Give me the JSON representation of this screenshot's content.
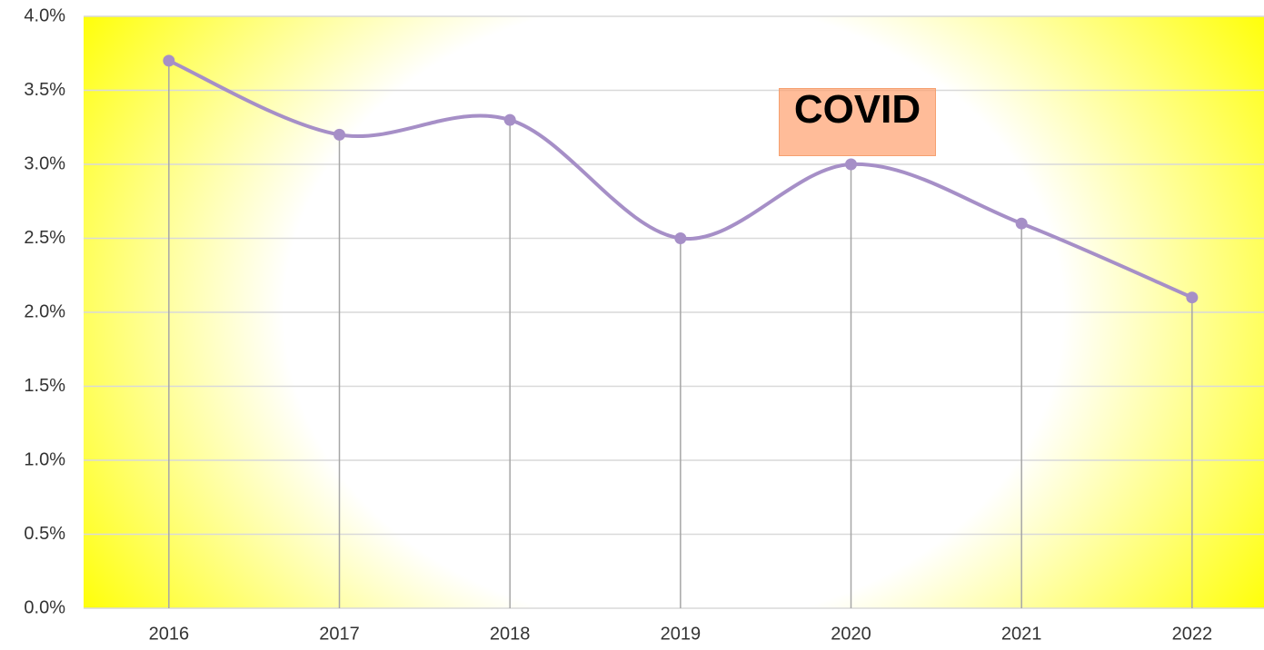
{
  "chart_data": {
    "type": "line",
    "categories": [
      "2016",
      "2017",
      "2018",
      "2019",
      "2020",
      "2021",
      "2022"
    ],
    "values": [
      3.7,
      3.2,
      3.3,
      2.5,
      3.0,
      2.6,
      2.1
    ],
    "color": "#a68fc7",
    "ylim": [
      0,
      4
    ],
    "yticks": [
      {
        "value": 0,
        "label": "0.0%"
      },
      {
        "value": 0.5,
        "label": "0.5%"
      },
      {
        "value": 1,
        "label": "1.0%"
      },
      {
        "value": 1.5,
        "label": "1.5%"
      },
      {
        "value": 2,
        "label": "2.0%"
      },
      {
        "value": 2.5,
        "label": "2.5%"
      },
      {
        "value": 3,
        "label": "3.0%"
      },
      {
        "value": 3.5,
        "label": "3.5%"
      },
      {
        "value": 4,
        "label": "4.0%"
      }
    ],
    "grid": true,
    "smooth": true,
    "drop_lines": true,
    "annotation": "COVID"
  }
}
